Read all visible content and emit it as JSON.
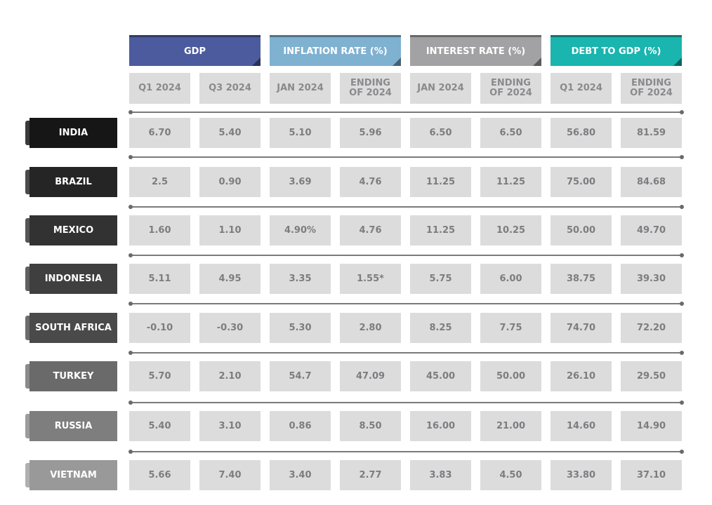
{
  "table": {
    "groups": [
      "GDP",
      "INFLATION RATE (%)",
      "INTEREST RATE (%)",
      "DEBT TO GDP (%)"
    ],
    "subheaders": [
      "Q1 2024",
      "Q3 2024",
      "JAN 2024",
      "ENDING OF 2024",
      "JAN 2024",
      "ENDING OF 2024",
      "Q1 2024",
      "ENDING OF 2024"
    ],
    "rows": [
      [
        "INDIA",
        "6.70",
        "5.40",
        "5.10",
        "5.96",
        "6.50",
        "6.50",
        "56.80",
        "81.59"
      ],
      [
        "BRAZIL",
        "2.5",
        "0.90",
        "3.69",
        "4.76",
        "11.25",
        "11.25",
        "75.00",
        "84.68"
      ],
      [
        "MEXICO",
        "1.60",
        "1.10",
        "4.90%",
        "4.76",
        "11.25",
        "10.25",
        "50.00",
        "49.70"
      ],
      [
        "INDONESIA",
        "5.11",
        "4.95",
        "3.35",
        "1.55*",
        "5.75",
        "6.00",
        "38.75",
        "39.30"
      ],
      [
        "SOUTH AFRICA",
        "-0.10",
        "-0.30",
        "5.30",
        "2.80",
        "8.25",
        "7.75",
        "74.70",
        "72.20"
      ],
      [
        "TURKEY",
        "5.70",
        "2.10",
        "54.7",
        "47.09",
        "45.00",
        "50.00",
        "26.10",
        "29.50"
      ],
      [
        "RUSSIA",
        "5.40",
        "3.10",
        "0.86",
        "8.50",
        "16.00",
        "21.00",
        "14.60",
        "14.90"
      ],
      [
        "VIETNAM",
        "5.66",
        "7.40",
        "3.40",
        "2.77",
        "3.83",
        "4.50",
        "33.80",
        "37.10"
      ]
    ]
  }
}
